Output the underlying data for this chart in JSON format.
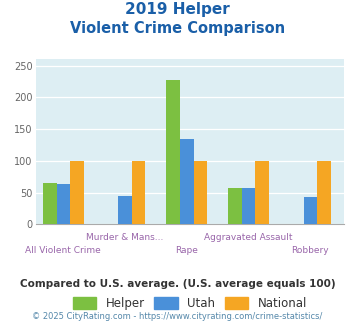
{
  "title_line1": "2019 Helper",
  "title_line2": "Violent Crime Comparison",
  "categories": [
    "All Violent Crime",
    "Murder & Mans...",
    "Rape",
    "Aggravated Assault",
    "Robbery"
  ],
  "helper_values": [
    65,
    0,
    227,
    58,
    0
  ],
  "utah_values": [
    63,
    45,
    135,
    58,
    43
  ],
  "national_values": [
    100,
    100,
    100,
    100,
    100
  ],
  "helper_color": "#7cc041",
  "utah_color": "#4a90d9",
  "national_color": "#f5a623",
  "ylim": [
    0,
    260
  ],
  "yticks": [
    0,
    50,
    100,
    150,
    200,
    250
  ],
  "plot_bg": "#ddeef3",
  "title_color": "#1a5fa8",
  "subtitle_note": "Compared to U.S. average. (U.S. average equals 100)",
  "footer": "© 2025 CityRating.com - https://www.cityrating.com/crime-statistics/",
  "subtitle_color": "#333333",
  "footer_color": "#5588aa",
  "bar_width": 0.22,
  "group_positions": [
    0,
    1,
    2,
    3,
    4
  ]
}
